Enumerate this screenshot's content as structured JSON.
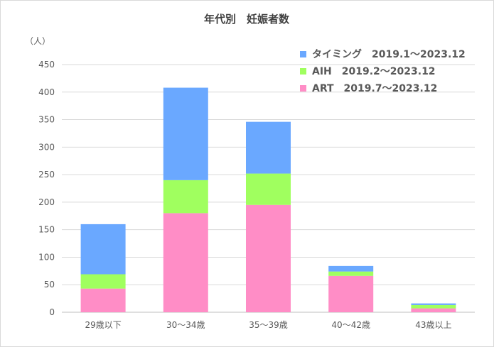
{
  "chart_data": {
    "type": "bar",
    "stacked": true,
    "title": "年代別　妊娠者数",
    "ylabel": "（人）",
    "xlabel": "",
    "categories": [
      "29歳以下",
      "30〜34歳",
      "35〜39歳",
      "40〜42歳",
      "43歳以上"
    ],
    "ylim": [
      0,
      450
    ],
    "yticks": [
      0,
      50,
      100,
      150,
      200,
      250,
      300,
      350,
      400,
      450
    ],
    "grid": true,
    "legend_position": "top-right",
    "series": [
      {
        "name": "ART　2019.7〜2023.12",
        "color": "#ff8dc6",
        "values": [
          43,
          180,
          195,
          66,
          7
        ]
      },
      {
        "name": "AIH　2019.2〜2023.12",
        "color": "#a0ff5f",
        "values": [
          26,
          60,
          57,
          8,
          6
        ]
      },
      {
        "name": "タイミング　2019.1〜2023.12",
        "color": "#6aa8ff",
        "values": [
          91,
          168,
          94,
          10,
          3
        ]
      }
    ],
    "legend_order": [
      2,
      1,
      0
    ]
  }
}
